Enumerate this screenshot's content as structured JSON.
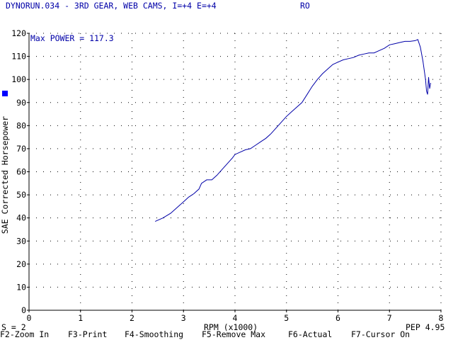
{
  "header": {
    "title": "DYNORUN.034 - 3RD GEAR, WEB CAMS, I=+4 E=+4",
    "right_label": "RO"
  },
  "status": {
    "smoothing": "S = 2",
    "pep": "PEP 4.95"
  },
  "function_keys": [
    {
      "label": "F2-Zoom In"
    },
    {
      "label": "F3-Print"
    },
    {
      "label": "F4-Smoothing"
    },
    {
      "label": "F5-Remove Max"
    },
    {
      "label": "F6-Actual"
    },
    {
      "label": "F7-Cursor On"
    }
  ],
  "colors": {
    "curve": "#0000a8",
    "marker": "#0000ff",
    "axis": "#000000",
    "grid": "#000000"
  },
  "chart_data": {
    "type": "line",
    "annotation": "Max POWER = 117.3",
    "xlabel": "RPM (x1000)",
    "ylabel": "SAE Corrected Horsepower",
    "xlim": [
      0,
      8
    ],
    "ylim": [
      0,
      120
    ],
    "xticks": [
      0,
      1,
      2,
      3,
      4,
      5,
      6,
      7,
      8
    ],
    "yticks": [
      0,
      10,
      20,
      30,
      40,
      50,
      60,
      70,
      80,
      90,
      100,
      110,
      120
    ],
    "grid": true,
    "series": [
      {
        "values": [
          [
            2.45,
            38.5
          ],
          [
            2.6,
            40.0
          ],
          [
            2.75,
            42.0
          ],
          [
            2.9,
            45.0
          ],
          [
            3.0,
            47.0
          ],
          [
            3.1,
            49.0
          ],
          [
            3.2,
            50.5
          ],
          [
            3.3,
            52.5
          ],
          [
            3.35,
            55.0
          ],
          [
            3.45,
            56.5
          ],
          [
            3.55,
            56.5
          ],
          [
            3.65,
            58.5
          ],
          [
            3.75,
            61.0
          ],
          [
            3.85,
            63.5
          ],
          [
            3.95,
            66.0
          ],
          [
            4.0,
            67.5
          ],
          [
            4.1,
            68.5
          ],
          [
            4.2,
            69.5
          ],
          [
            4.3,
            70.0
          ],
          [
            4.4,
            71.5
          ],
          [
            4.5,
            73.0
          ],
          [
            4.6,
            74.5
          ],
          [
            4.7,
            76.5
          ],
          [
            4.8,
            79.0
          ],
          [
            4.9,
            81.5
          ],
          [
            5.0,
            84.0
          ],
          [
            5.1,
            86.0
          ],
          [
            5.2,
            88.0
          ],
          [
            5.3,
            90.0
          ],
          [
            5.4,
            93.5
          ],
          [
            5.5,
            97.0
          ],
          [
            5.6,
            100.0
          ],
          [
            5.7,
            102.5
          ],
          [
            5.8,
            104.5
          ],
          [
            5.9,
            106.5
          ],
          [
            6.0,
            107.5
          ],
          [
            6.1,
            108.5
          ],
          [
            6.2,
            109.0
          ],
          [
            6.3,
            109.5
          ],
          [
            6.4,
            110.5
          ],
          [
            6.5,
            111.0
          ],
          [
            6.6,
            111.5
          ],
          [
            6.7,
            111.5
          ],
          [
            6.8,
            112.5
          ],
          [
            6.9,
            113.5
          ],
          [
            7.0,
            115.0
          ],
          [
            7.1,
            115.5
          ],
          [
            7.2,
            116.0
          ],
          [
            7.3,
            116.5
          ],
          [
            7.4,
            116.5
          ],
          [
            7.5,
            116.8
          ],
          [
            7.55,
            117.3
          ],
          [
            7.6,
            114.0
          ],
          [
            7.65,
            108.0
          ],
          [
            7.7,
            100.0
          ],
          [
            7.72,
            95.0
          ],
          [
            7.74,
            93.5
          ],
          [
            7.76,
            101.0
          ],
          [
            7.78,
            96.0
          ],
          [
            7.8,
            98.5
          ]
        ]
      }
    ]
  }
}
